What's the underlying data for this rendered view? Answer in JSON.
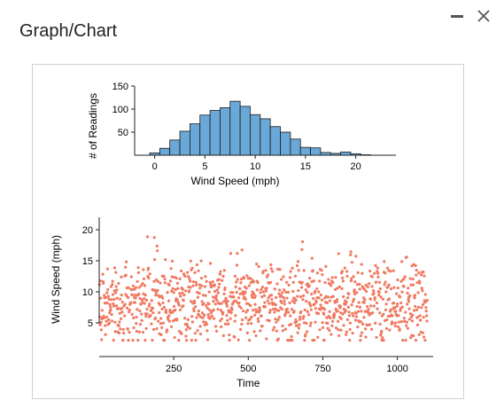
{
  "window": {
    "title": "Graph/Chart",
    "minimize_icon": "minimize-icon",
    "close_icon": "close-icon"
  },
  "colors": {
    "histogram_fill": "#6aa8d8",
    "histogram_stroke": "#1a1a1a",
    "scatter_point": "#f07a62",
    "axis": "#222222"
  },
  "chart_data": [
    {
      "type": "bar",
      "title": "",
      "xlabel": "Wind Speed (mph)",
      "ylabel": "# of Readings",
      "bin_width": 1,
      "bin_start": 0,
      "values": [
        5,
        15,
        33,
        52,
        68,
        87,
        97,
        103,
        117,
        106,
        88,
        79,
        62,
        50,
        35,
        17,
        16,
        6,
        4,
        7,
        3,
        1,
        0
      ],
      "xticks": [
        0,
        5,
        10,
        15,
        20
      ],
      "yticks": [
        50,
        100,
        150
      ],
      "xlim": [
        -1.5,
        24.5
      ],
      "ylim": [
        0,
        150
      ]
    },
    {
      "type": "scatter",
      "title": "",
      "xlabel": "Time",
      "ylabel": "Wind Speed (mph)",
      "xticks": [
        250,
        500,
        750,
        1000
      ],
      "yticks": [
        5,
        10,
        15,
        20
      ],
      "xlim": [
        0,
        1120
      ],
      "ylim": [
        2,
        22
      ],
      "n_points": 1100,
      "mean_speed": 8.1,
      "sd_speed": 3.3
    }
  ]
}
